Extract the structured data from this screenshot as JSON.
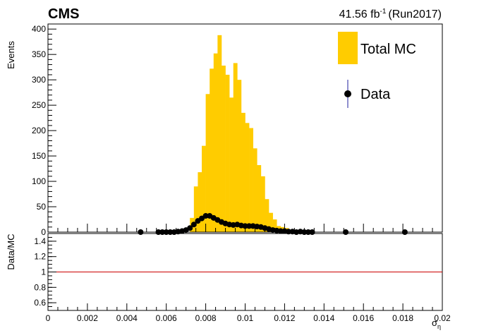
{
  "header": {
    "experiment": "CMS",
    "lumi_value": "41.56 fb",
    "lumi_exp": "-1",
    "lumi_run": "(Run2017)"
  },
  "chart_data": [
    {
      "type": "bar",
      "panel": "main",
      "ylabel": "Events",
      "xlim": [
        0,
        0.02
      ],
      "ylim": [
        0,
        410
      ],
      "yticks": [
        0,
        50,
        100,
        150,
        200,
        250,
        300,
        350,
        400
      ],
      "legend": {
        "placement": "top-right",
        "entries": [
          "Total MC",
          "Data"
        ]
      },
      "colors": {
        "mc": "#ffcc00",
        "data": "#000000",
        "data_error": "#1f1f9f"
      },
      "series": [
        {
          "name": "Total MC",
          "style": "filled-histogram",
          "bin_width": 0.0002,
          "bins_start": [
            0.0072,
            0.0074,
            0.0076,
            0.0078,
            0.008,
            0.0082,
            0.0084,
            0.0086,
            0.0088,
            0.009,
            0.0092,
            0.0094,
            0.0096,
            0.0098,
            0.01,
            0.0102,
            0.0104,
            0.0106,
            0.0108,
            0.011,
            0.0112,
            0.0114,
            0.0116,
            0.0118,
            0.012,
            0.0122,
            0.0124,
            0.0126,
            0.0128,
            0.013
          ],
          "values": [
            28,
            90,
            118,
            170,
            272,
            322,
            352,
            388,
            328,
            310,
            265,
            333,
            300,
            235,
            215,
            205,
            165,
            132,
            110,
            65,
            38,
            25,
            12,
            10,
            8,
            4,
            3,
            2,
            1,
            1
          ]
        },
        {
          "name": "Data",
          "style": "markers-with-error",
          "x": [
            0.0047,
            0.0056,
            0.0058,
            0.006,
            0.0062,
            0.0064,
            0.0066,
            0.0068,
            0.007,
            0.0072,
            0.0074,
            0.0076,
            0.0078,
            0.008,
            0.0082,
            0.0084,
            0.0086,
            0.0088,
            0.009,
            0.0092,
            0.0094,
            0.0096,
            0.0098,
            0.01,
            0.0102,
            0.0104,
            0.0106,
            0.0108,
            0.011,
            0.0112,
            0.0114,
            0.0116,
            0.0118,
            0.012,
            0.0122,
            0.0124,
            0.0126,
            0.0128,
            0.013,
            0.0132,
            0.0134,
            0.0151,
            0.0181
          ],
          "values": [
            0,
            0,
            0,
            0,
            0,
            0,
            1,
            2,
            4,
            8,
            15,
            22,
            27,
            32,
            32,
            28,
            24,
            20,
            17,
            15,
            14,
            15,
            13,
            12,
            12,
            12,
            11,
            10,
            8,
            6,
            4,
            3,
            2,
            2,
            1,
            1,
            0,
            1,
            0,
            0,
            0,
            0,
            0
          ]
        }
      ]
    },
    {
      "type": "line",
      "panel": "ratio",
      "ylabel": "Data/MC",
      "xlabel": "σ",
      "xlabel_sub": "η",
      "xlim": [
        0,
        0.02
      ],
      "ylim": [
        0.5,
        1.5
      ],
      "yticks": [
        0.6,
        0.8,
        1,
        1.2,
        1.4
      ],
      "xticks": [
        0,
        0.002,
        0.004,
        0.006,
        0.008,
        0.01,
        0.012,
        0.014,
        0.016,
        0.018,
        0.02
      ],
      "xtick_labels": [
        "0",
        "0.002",
        "0.004",
        "0.006",
        "0.008",
        "0.01",
        "0.012",
        "0.014",
        "0.016",
        "0.018",
        "0.02"
      ],
      "reference_line": 1,
      "colors": {
        "reference_line": "#cc0000"
      }
    }
  ]
}
